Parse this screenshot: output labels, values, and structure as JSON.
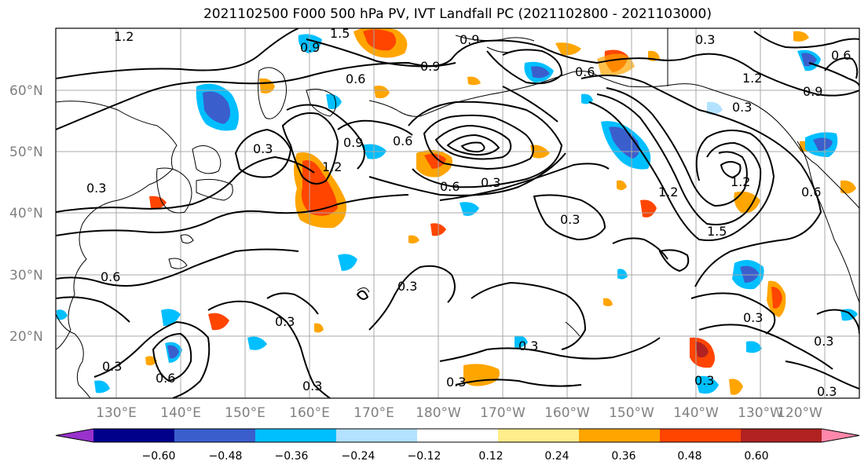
{
  "title": "2021102500 F000 500 hPa PV, IVT Landfall PC (2021102800 - 2021103000)",
  "lat_labels": [
    "60°N",
    "50°N",
    "40°N",
    "30°N",
    "20°N"
  ],
  "lon_labels": [
    "130°E",
    "140°E",
    "150°E",
    "160°E",
    "170°E",
    "180°W",
    "170°W",
    "160°W",
    "150°W",
    "140°W",
    "130°W",
    "120°W"
  ],
  "colorbar": {
    "colors": [
      "#9932CC",
      "#00008B",
      "#3A5FCD",
      "#00BFFF",
      "#B2E2FF",
      "#FFFFFF",
      "#FFEC8B",
      "#FFA500",
      "#FF4500",
      "#B22222",
      "#FF88AA"
    ],
    "tick_labels": [
      "−0.60",
      "−0.48",
      "−0.36",
      "−0.24",
      "−0.12",
      "0.12",
      "0.24",
      "0.36",
      "0.48",
      "0.60"
    ]
  },
  "contour_labels": [
    "1.2",
    "1.5",
    "0.9",
    "0.3",
    "0.6",
    "0.6",
    "1.2",
    "0.9",
    "0.6",
    "0.9",
    "0.3",
    "0.6",
    "1.2",
    "0.9",
    "0.6",
    "0.3",
    "0.9",
    "1.2",
    "0.6",
    "0.3",
    "1.2",
    "1.5",
    "0.3",
    "0.3",
    "0.3",
    "0.3",
    "0.3",
    "0.6",
    "0.3",
    "0.3",
    "0.3",
    "0.6",
    "0.3",
    "0.3",
    "0.3",
    "0.3"
  ]
}
